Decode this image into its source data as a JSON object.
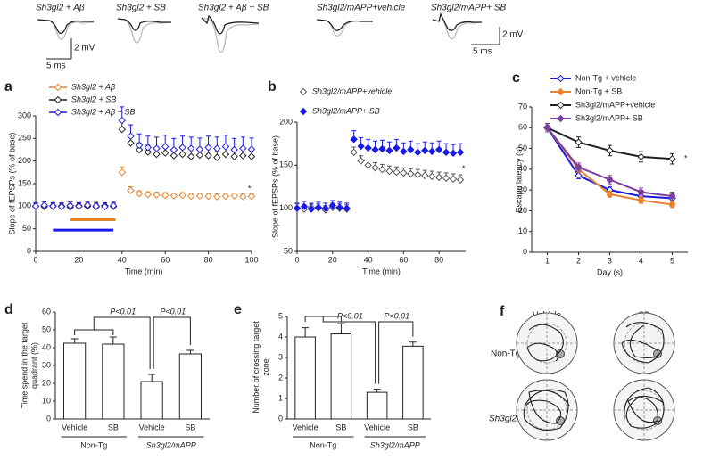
{
  "trace_panels": {
    "labels": [
      "Sh3gl2 + Aβ",
      "Sh3gl2 + SB",
      "Sh3gl2 + Aβ + SB",
      "Sh3gl2/mAPP+vehicle",
      "Sh3gl2/mAPP+ SB"
    ],
    "scale_bars": [
      "2 mV",
      "5 ms",
      "2 mV",
      "5 ms"
    ]
  },
  "swim_paths": {
    "panel": "f",
    "columns": [
      "Vehicle",
      "SB"
    ],
    "rows": [
      "Non-Tg",
      "Sh3gl2/mAPP"
    ]
  },
  "chart_data": [
    {
      "type": "scatter",
      "panel": "a",
      "xlabel": "Time (min)",
      "ylabel": "Slope of fEPSPs (% of base)",
      "x": [
        0,
        4,
        8,
        12,
        16,
        20,
        24,
        28,
        32,
        36,
        40,
        44,
        48,
        52,
        56,
        60,
        64,
        68,
        72,
        76,
        80,
        84,
        88,
        92,
        96,
        100
      ],
      "xlim": [
        0,
        100
      ],
      "xticks": [
        0,
        20,
        40,
        60,
        80,
        100
      ],
      "ylim": [
        0,
        300
      ],
      "yticks": [
        0,
        50,
        100,
        150,
        200,
        250,
        300
      ],
      "series": [
        {
          "name": "Sh3gl2 + Aβ",
          "color": "#e8822a",
          "filled": false,
          "values": [
            100,
            101,
            99,
            100,
            102,
            99,
            100,
            101,
            100,
            99,
            175,
            135,
            128,
            126,
            125,
            124,
            123,
            124,
            122,
            123,
            122,
            121,
            122,
            123,
            121,
            122
          ],
          "errors": [
            8,
            8,
            8,
            8,
            8,
            8,
            8,
            8,
            8,
            8,
            12,
            8,
            6,
            6,
            6,
            6,
            6,
            6,
            6,
            6,
            6,
            6,
            6,
            6,
            6,
            6
          ]
        },
        {
          "name": "Sh3gl2 + SB",
          "color": "#222222",
          "filled": false,
          "values": [
            100,
            99,
            101,
            100,
            98,
            101,
            100,
            99,
            101,
            100,
            270,
            240,
            225,
            220,
            215,
            218,
            212,
            215,
            210,
            213,
            212,
            208,
            215,
            210,
            212,
            210
          ],
          "errors": [
            6,
            6,
            6,
            6,
            6,
            6,
            6,
            6,
            6,
            6,
            20,
            15,
            15,
            15,
            15,
            15,
            15,
            15,
            15,
            15,
            15,
            15,
            15,
            15,
            15,
            15
          ]
        },
        {
          "name": "Sh3gl2 + Aβ + SB",
          "color": "#1a1ae6",
          "filled": false,
          "values": [
            100,
            102,
            100,
            99,
            101,
            100,
            102,
            100,
            99,
            101,
            290,
            255,
            235,
            230,
            228,
            232,
            225,
            230,
            228,
            226,
            230,
            228,
            232,
            225,
            228,
            226
          ],
          "errors": [
            8,
            8,
            8,
            8,
            8,
            8,
            8,
            8,
            8,
            8,
            30,
            25,
            25,
            25,
            25,
            25,
            25,
            25,
            25,
            25,
            25,
            25,
            25,
            25,
            25,
            25
          ]
        }
      ],
      "application_bars": [
        {
          "color": "#e8822a",
          "x": [
            16,
            37
          ],
          "y": 70
        },
        {
          "color": "#1a1ae6",
          "x": [
            8,
            36
          ],
          "y": 47
        }
      ],
      "annotation": "*"
    },
    {
      "type": "scatter",
      "panel": "b",
      "xlabel": "Time (min)",
      "ylabel": "Slope of fEPSPs (% of base)",
      "x": [
        0,
        4,
        8,
        12,
        16,
        20,
        24,
        28,
        32,
        36,
        40,
        44,
        48,
        52,
        56,
        60,
        64,
        68,
        72,
        76,
        80,
        84,
        88,
        92
      ],
      "xlim": [
        0,
        95
      ],
      "xticks": [
        0,
        20,
        40,
        60,
        80
      ],
      "ylim": [
        50,
        200
      ],
      "yticks": [
        50,
        100,
        150,
        200
      ],
      "series": [
        {
          "name": "Sh3gl2/mAPP+vehicle",
          "color": "#555555",
          "filled": false,
          "values": [
            100,
            99,
            101,
            100,
            98,
            101,
            100,
            99,
            165,
            155,
            150,
            147,
            145,
            143,
            142,
            141,
            140,
            139,
            138,
            137,
            136,
            135,
            134,
            133
          ],
          "errors": [
            5,
            5,
            5,
            5,
            5,
            5,
            5,
            5,
            6,
            6,
            6,
            6,
            6,
            6,
            6,
            6,
            6,
            6,
            6,
            6,
            6,
            6,
            6,
            6
          ]
        },
        {
          "name": "Sh3gl2/mAPP+ SB",
          "color": "#1a1ae6",
          "filled": true,
          "values": [
            100,
            102,
            99,
            101,
            100,
            103,
            101,
            100,
            180,
            172,
            170,
            168,
            169,
            167,
            170,
            166,
            168,
            165,
            167,
            166,
            168,
            165,
            164,
            165
          ],
          "errors": [
            6,
            6,
            6,
            6,
            6,
            6,
            6,
            6,
            10,
            10,
            10,
            10,
            10,
            10,
            10,
            10,
            10,
            10,
            10,
            10,
            10,
            10,
            10,
            10
          ]
        }
      ],
      "annotation": "*"
    },
    {
      "type": "line",
      "panel": "c",
      "xlabel": "Day (s)",
      "ylabel": "Escape latency (s)",
      "x": [
        1,
        2,
        3,
        4,
        5
      ],
      "xlim": [
        0.5,
        5.5
      ],
      "xticks": [
        1,
        2,
        3,
        4,
        5
      ],
      "ylim": [
        0,
        70
      ],
      "yticks": [
        0,
        10,
        20,
        30,
        40,
        50,
        60,
        70
      ],
      "series": [
        {
          "name": "Non-Tg + vehicle",
          "color": "#1a1ae6",
          "filled": false,
          "values": [
            60,
            37,
            30,
            27,
            26
          ],
          "errors": [
            2,
            1.5,
            1.5,
            1.5,
            1.5
          ]
        },
        {
          "name": "Non-Tg + SB",
          "color": "#e8822a",
          "filled": true,
          "values": [
            60,
            40,
            28,
            25,
            23
          ],
          "errors": [
            2,
            1.5,
            1.5,
            1.5,
            1.5
          ]
        },
        {
          "name": "Sh3gl2/mAPP+vehicle",
          "color": "#222222",
          "filled": false,
          "values": [
            60,
            53,
            49,
            46,
            45
          ],
          "errors": [
            2,
            2.5,
            2.5,
            2.5,
            2.5
          ]
        },
        {
          "name": "Sh3gl2/mAPP+ SB",
          "color": "#7b3fa0",
          "filled": true,
          "values": [
            60,
            41,
            35,
            29,
            27
          ],
          "errors": [
            2,
            2,
            2,
            2,
            2
          ]
        }
      ],
      "annotation": "*"
    },
    {
      "type": "bar",
      "panel": "d",
      "ylabel": "Time spend in the target quadrant (%)",
      "categories": [
        "Vehicle",
        "SB",
        "Vehicle",
        "SB"
      ],
      "values": [
        42.5,
        42,
        21,
        36.5
      ],
      "errors": [
        2.5,
        4,
        4,
        2
      ],
      "color": "#ffffff",
      "ylim": [
        0,
        60
      ],
      "yticks": [
        0,
        10,
        20,
        30,
        40,
        50,
        60
      ],
      "group_labels": [
        "Non-Tg",
        "Sh3gl2/mAPP"
      ],
      "significance": [
        "P<0.01",
        "P<0.01"
      ]
    },
    {
      "type": "bar",
      "panel": "e",
      "ylabel": "Number of crossing target zone",
      "categories": [
        "Vehicle",
        "SB",
        "Vehicle",
        "SB"
      ],
      "values": [
        4.0,
        4.15,
        1.3,
        3.55
      ],
      "errors": [
        0.45,
        0.5,
        0.15,
        0.2
      ],
      "color": "#ffffff",
      "ylim": [
        0,
        5
      ],
      "yticks": [
        0,
        1,
        2,
        3,
        4,
        5
      ],
      "group_labels": [
        "Non-Tg",
        "Sh3gl2/mAPP"
      ],
      "significance": [
        "P<0.01",
        "P<0.01"
      ]
    }
  ]
}
